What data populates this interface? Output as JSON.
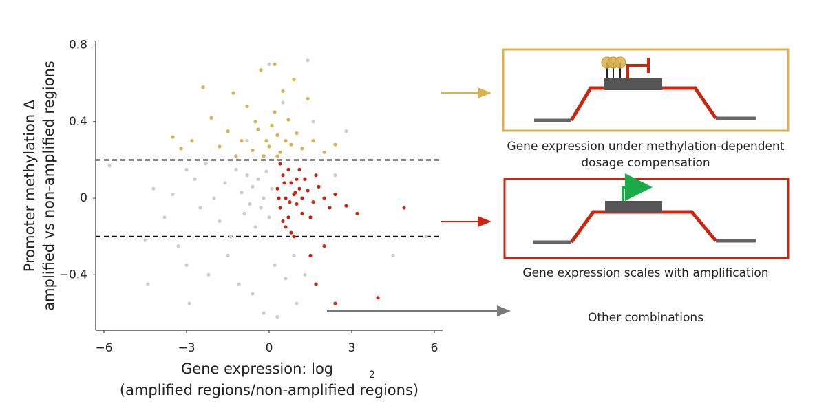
{
  "chart_data": {
    "type": "scatter",
    "y_label": [
      "Promoter methylation Δ",
      "amplified vs non-amplified regions"
    ],
    "x_label": {
      "main": "Gene expression: log",
      "subscript": "2",
      "line2": "(amplified regions/non-amplified regions)"
    },
    "xlim": [
      -6.3,
      6.3
    ],
    "ylim": [
      -0.69,
      0.82
    ],
    "xticks": [
      {
        "value": -6,
        "label": "−6"
      },
      {
        "value": -3,
        "label": "−3"
      },
      0,
      3,
      6
    ],
    "yticks": [
      {
        "value": -0.4,
        "label": "−0.4"
      },
      0,
      0.4,
      0.8
    ],
    "thresholds": [
      0.2,
      -0.2
    ],
    "series": [
      {
        "color": "#cccccc",
        "x": [
          -5.8,
          -4.5,
          -4.2,
          -3.8,
          -3.5,
          -3.0,
          -2.7,
          -2.5,
          -2.3,
          -2.0,
          -1.8,
          -1.6,
          -1.4,
          -1.2,
          -1.0,
          -0.9,
          -0.8,
          -0.7,
          -0.6,
          -0.5,
          -0.4,
          -0.3,
          -0.2,
          -0.1,
          0,
          0.1,
          0.2,
          -1.5,
          -1.1,
          -0.6,
          -0.2,
          0.3,
          0.6,
          1.0,
          -2.9,
          -3.3,
          -0.8,
          0.0,
          0.5,
          1.4,
          5.7,
          4.5,
          2.8,
          1.6,
          -4.4,
          -3.0,
          -2.2,
          1.3,
          0.9,
          2.4
        ],
        "values": [
          0.17,
          -0.22,
          0.05,
          -0.1,
          0.02,
          -0.35,
          0.1,
          -0.05,
          0.18,
          0.0,
          -0.12,
          0.08,
          -0.2,
          0.15,
          0.03,
          -0.08,
          0.12,
          -0.03,
          0.06,
          -0.15,
          0.1,
          -0.05,
          0.0,
          0.14,
          -0.1,
          0.05,
          -0.35,
          -0.3,
          -0.45,
          -0.5,
          -0.6,
          -0.62,
          -0.42,
          -0.55,
          -0.55,
          -0.25,
          0.3,
          0.7,
          0.5,
          0.72,
          -0.2,
          -0.3,
          0.35,
          0.4,
          -0.45,
          0.15,
          -0.4,
          -0.4,
          -0.3,
          0.12
        ]
      },
      {
        "color": "#d9b24e",
        "x": [
          -3.5,
          -3.2,
          -2.8,
          -2.4,
          -2.1,
          -1.8,
          -1.5,
          -1.2,
          -1.0,
          -0.8,
          -0.6,
          -0.4,
          -0.3,
          -0.2,
          -0.1,
          0,
          0.1,
          0.2,
          0.3,
          0.4,
          0.5,
          0.6,
          0.7,
          0.8,
          1.0,
          1.2,
          1.4,
          1.6,
          2.0,
          2.4,
          0.2,
          -0.5,
          0.9,
          0.3,
          -1.3
        ],
        "values": [
          0.32,
          0.26,
          0.3,
          0.58,
          0.42,
          0.27,
          0.35,
          0.22,
          0.3,
          0.48,
          0.25,
          0.36,
          0.67,
          0.22,
          0.3,
          0.27,
          0.38,
          0.45,
          0.33,
          0.24,
          0.56,
          0.3,
          0.41,
          0.28,
          0.34,
          0.26,
          0.52,
          0.3,
          0.24,
          0.28,
          0.7,
          0.4,
          0.62,
          0.22,
          0.55
        ]
      },
      {
        "color": "#c8260f",
        "x": [
          0.3,
          0.4,
          0.5,
          0.6,
          0.7,
          0.8,
          0.9,
          1.0,
          1.1,
          1.2,
          0.4,
          0.6,
          0.8,
          1.0,
          1.2,
          1.4,
          1.6,
          1.8,
          2.0,
          2.2,
          0.5,
          0.7,
          0.9,
          1.1,
          1.3,
          1.5,
          1.7,
          2.4,
          2.8,
          3.2,
          0.35,
          0.55,
          0.75,
          0.95,
          1.5,
          2.0,
          2.4,
          3.95,
          4.9,
          1.7
        ],
        "values": [
          0.05,
          -0.05,
          0.12,
          0.0,
          -0.1,
          0.08,
          0.02,
          -0.03,
          0.15,
          0.0,
          0.18,
          -0.15,
          -0.18,
          0.1,
          -0.08,
          0.04,
          -0.02,
          0.06,
          0.0,
          -0.05,
          -0.12,
          0.15,
          -0.2,
          0.05,
          0.1,
          -0.1,
          0.12,
          -0.55,
          -0.04,
          -0.08,
          0.0,
          0.08,
          -0.02,
          0.03,
          -0.3,
          -0.25,
          0.02,
          -0.52,
          -0.05,
          -0.45
        ]
      }
    ],
    "annotations": {
      "compensation": [
        "Gene expression under methylation-dependent",
        "dosage compensation"
      ],
      "scales": "Gene expression scales with amplification",
      "other": "Other combinations"
    }
  }
}
